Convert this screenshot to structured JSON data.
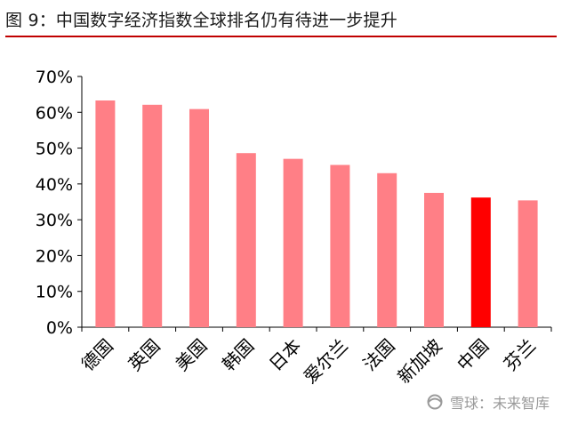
{
  "figure": {
    "title": "图 9：中国数字经济指数全球排名仍有待进一步提升"
  },
  "watermark": {
    "brand": "雪球：未来智库",
    "icon": "snowball-logo-icon"
  },
  "colors": {
    "bar": "#ff7f86",
    "highlight": "#ff0000",
    "title_rule": "#c00000"
  },
  "chart_data": {
    "type": "bar",
    "title": "",
    "xlabel": "",
    "ylabel": "",
    "categories": [
      "德国",
      "英国",
      "美国",
      "韩国",
      "日本",
      "爱尔兰",
      "法国",
      "新加坡",
      "中国",
      "芬兰"
    ],
    "values": [
      63.3,
      62.1,
      60.9,
      48.6,
      47.0,
      45.3,
      43.0,
      37.5,
      36.2,
      35.4
    ],
    "highlight_category": "中国",
    "ylim": [
      0,
      70
    ],
    "yticks": [
      0,
      10,
      20,
      30,
      40,
      50,
      60,
      70
    ],
    "ytick_labels": [
      "0%",
      "10%",
      "20%",
      "30%",
      "40%",
      "50%",
      "60%",
      "70%"
    ],
    "grid": false,
    "legend": "none"
  }
}
